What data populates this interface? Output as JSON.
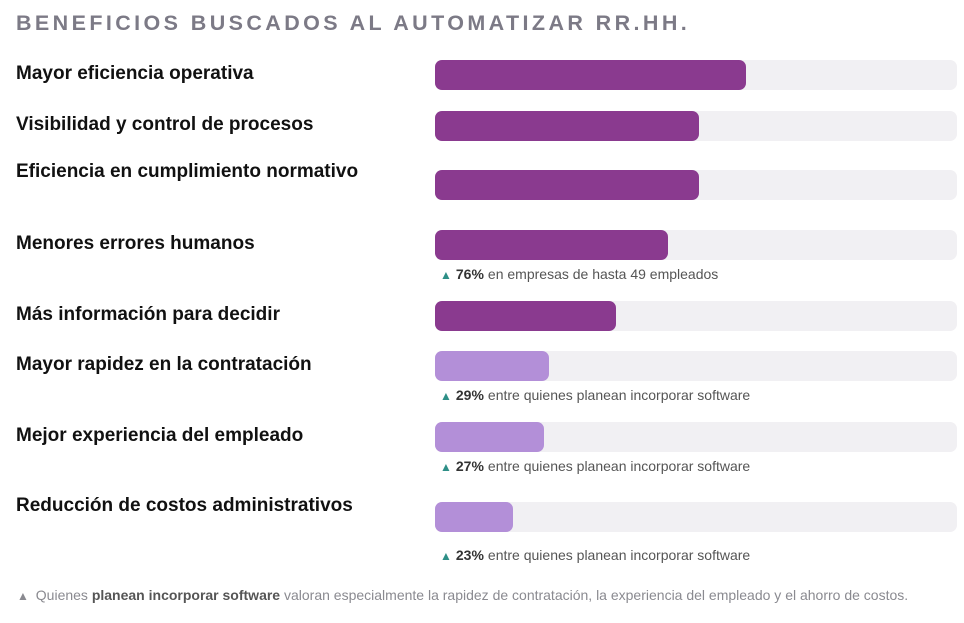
{
  "chart_data": {
    "type": "bar",
    "title": "BENEFICIOS BUSCADOS AL AUTOMATIZAR RR.HH.",
    "categories": [
      "Mayor eficiencia operativa",
      "Visibilidad y control de procesos",
      "Eficiencia en cumplimiento normativo",
      "Menores errores humanos",
      "Más información para decidir",
      "Mayor rapidez en la contratación",
      "Mejor experiencia del empleado",
      "Reducción de costos administrativos"
    ],
    "values": [
      59.5,
      50.6,
      50.6,
      44.6,
      34.7,
      21.9,
      20.9,
      14.9
    ],
    "xlim": [
      0,
      100
    ],
    "colors": [
      "#8a3a8f",
      "#8a3a8f",
      "#8a3a8f",
      "#8a3a8f",
      "#8a3a8f",
      "#b38fd8",
      "#b38fd8",
      "#b38fd8"
    ],
    "track_color": "#f1f0f3",
    "annotations": [
      {
        "category": "Menores errores humanos",
        "icon": "up-triangle-icon",
        "value": "76%",
        "text": "en empresas de hasta 49 empleados"
      },
      {
        "category": "Mayor rapidez en la contratación",
        "icon": "up-triangle-icon",
        "value": "29%",
        "text": "entre quienes planean incorporar software"
      },
      {
        "category": "Mejor experiencia del empleado",
        "icon": "up-triangle-icon",
        "value": "27%",
        "text": "entre quienes planean incorporar software"
      },
      {
        "category": "Reducción de costos administrativos",
        "icon": "up-triangle-icon",
        "value": "23%",
        "text": "entre quienes planean incorporar software"
      }
    ]
  },
  "footnote": {
    "marker": "▲",
    "prefix": "Quienes",
    "highlight": "planean incorporar software",
    "suffix": "valoran especialmente la rapidez de contratación, la experiencia del empleado y el ahorro de costos."
  }
}
